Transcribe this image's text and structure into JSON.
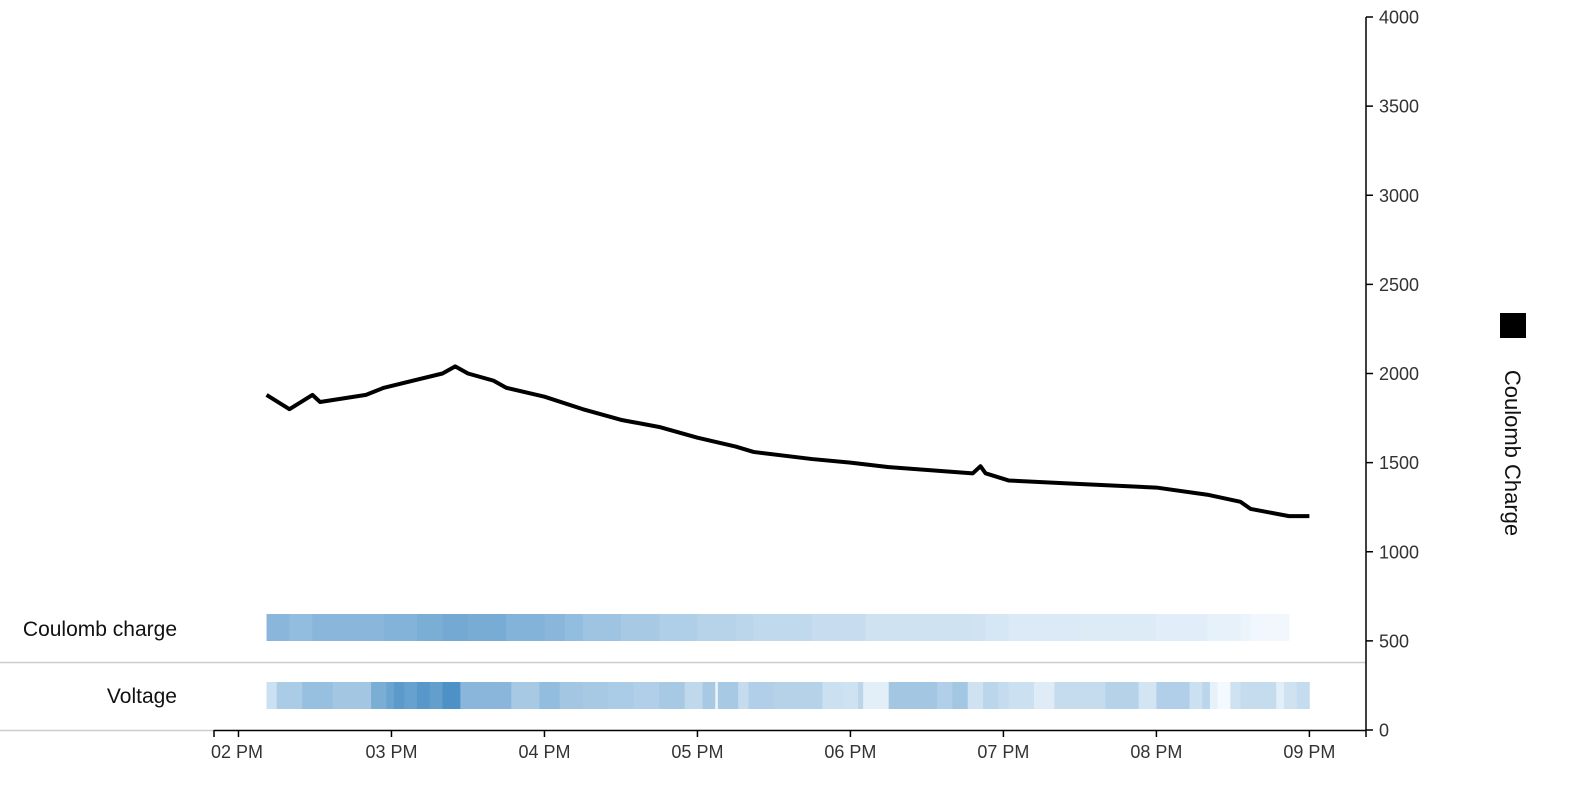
{
  "chart_data": {
    "type": "line",
    "title": "",
    "xlabel": "",
    "ylabel": "Coulomb Charge",
    "ylim": [
      0,
      4000
    ],
    "yticks": [
      "0",
      "500",
      "1000",
      "1500",
      "2000",
      "2500",
      "3000",
      "3500",
      "4000"
    ],
    "xticks": [
      "02 PM",
      "03 PM",
      "04 PM",
      "05 PM",
      "06 PM",
      "07 PM",
      "08 PM",
      "09 PM"
    ],
    "x_range_hours": [
      13.84,
      21.37
    ],
    "grid": false,
    "legend": {
      "position": "right",
      "entries": [
        "Coulomb Charge"
      ]
    },
    "colors": {
      "line": "#000000",
      "band_light": "#f7fbff",
      "band_dark": "#2f7ebc",
      "axis": "#000000",
      "divider": "#cccccc"
    },
    "series": [
      {
        "name": "Coulomb Charge",
        "points": [
          [
            "14:11",
            1880
          ],
          [
            "14:20",
            1800
          ],
          [
            "14:29",
            1880
          ],
          [
            "14:32",
            1840
          ],
          [
            "14:50",
            1880
          ],
          [
            "14:57",
            1920
          ],
          [
            "15:20",
            2000
          ],
          [
            "15:25",
            2040
          ],
          [
            "15:30",
            2000
          ],
          [
            "15:40",
            1960
          ],
          [
            "15:45",
            1920
          ],
          [
            "16:00",
            1870
          ],
          [
            "16:15",
            1800
          ],
          [
            "16:30",
            1740
          ],
          [
            "16:45",
            1700
          ],
          [
            "17:00",
            1640
          ],
          [
            "17:15",
            1590
          ],
          [
            "17:22",
            1560
          ],
          [
            "17:45",
            1520
          ],
          [
            "18:00",
            1500
          ],
          [
            "18:15",
            1475
          ],
          [
            "18:48",
            1440
          ],
          [
            "18:51",
            1480
          ],
          [
            "18:53",
            1440
          ],
          [
            "19:02",
            1400
          ],
          [
            "19:30",
            1380
          ],
          [
            "20:00",
            1360
          ],
          [
            "20:20",
            1320
          ],
          [
            "20:33",
            1280
          ],
          [
            "20:37",
            1240
          ],
          [
            "20:52",
            1200
          ],
          [
            "21:00",
            1200
          ]
        ]
      }
    ],
    "bands": [
      {
        "name": "Coulomb charge",
        "segments": [
          [
            "14:11",
            "14:20",
            0.55
          ],
          [
            "14:20",
            "14:29",
            0.5
          ],
          [
            "14:29",
            "14:50",
            0.55
          ],
          [
            "14:50",
            "14:57",
            0.55
          ],
          [
            "14:57",
            "15:10",
            0.58
          ],
          [
            "15:10",
            "15:20",
            0.62
          ],
          [
            "15:20",
            "15:30",
            0.66
          ],
          [
            "15:30",
            "15:45",
            0.63
          ],
          [
            "15:45",
            "16:00",
            0.58
          ],
          [
            "16:00",
            "16:08",
            0.55
          ],
          [
            "16:08",
            "16:15",
            0.5
          ],
          [
            "16:15",
            "16:30",
            0.44
          ],
          [
            "16:30",
            "16:45",
            0.4
          ],
          [
            "16:45",
            "17:00",
            0.36
          ],
          [
            "17:00",
            "17:15",
            0.32
          ],
          [
            "17:15",
            "17:22",
            0.3
          ],
          [
            "17:22",
            "17:45",
            0.27
          ],
          [
            "17:45",
            "18:06",
            0.24
          ],
          [
            "18:06",
            "18:48",
            0.2
          ],
          [
            "18:48",
            "18:53",
            0.19
          ],
          [
            "18:53",
            "19:02",
            0.17
          ],
          [
            "19:02",
            "19:30",
            0.14
          ],
          [
            "19:30",
            "20:00",
            0.13
          ],
          [
            "20:00",
            "20:20",
            0.11
          ],
          [
            "20:20",
            "20:33",
            0.08
          ],
          [
            "20:33",
            "20:37",
            0.06
          ],
          [
            "20:37",
            "20:52",
            0.03
          ]
        ]
      },
      {
        "name": "Voltage",
        "segments": [
          [
            "14:11",
            "14:15",
            0.22
          ],
          [
            "14:15",
            "14:25",
            0.38
          ],
          [
            "14:25",
            "14:37",
            0.48
          ],
          [
            "14:37",
            "14:52",
            0.42
          ],
          [
            "14:52",
            "14:58",
            0.62
          ],
          [
            "14:58",
            "15:01",
            0.7
          ],
          [
            "15:01",
            "15:05",
            0.78
          ],
          [
            "15:05",
            "15:10",
            0.72
          ],
          [
            "15:10",
            "15:15",
            0.8
          ],
          [
            "15:15",
            "15:20",
            0.74
          ],
          [
            "15:20",
            "15:27",
            0.85
          ],
          [
            "15:27",
            "15:47",
            0.55
          ],
          [
            "15:47",
            "15:58",
            0.4
          ],
          [
            "15:58",
            "16:06",
            0.5
          ],
          [
            "16:06",
            "16:15",
            0.42
          ],
          [
            "16:15",
            "16:25",
            0.4
          ],
          [
            "16:25",
            "16:35",
            0.38
          ],
          [
            "16:35",
            "16:45",
            0.35
          ],
          [
            "16:45",
            "16:55",
            0.4
          ],
          [
            "16:55",
            "17:02",
            0.28
          ],
          [
            "17:02",
            "17:07",
            0.4
          ],
          [
            "17:07",
            "17:08",
            0.05
          ],
          [
            "17:08",
            "17:16",
            0.4
          ],
          [
            "17:16",
            "17:20",
            0.25
          ],
          [
            "17:20",
            "17:30",
            0.35
          ],
          [
            "17:30",
            "17:49",
            0.33
          ],
          [
            "17:49",
            "17:57",
            0.22
          ],
          [
            "17:57",
            "18:03",
            0.2
          ],
          [
            "18:03",
            "18:05",
            0.3
          ],
          [
            "18:05",
            "18:15",
            0.1
          ],
          [
            "18:15",
            "18:34",
            0.42
          ],
          [
            "18:34",
            "18:40",
            0.35
          ],
          [
            "18:40",
            "18:46",
            0.42
          ],
          [
            "18:46",
            "18:52",
            0.2
          ],
          [
            "18:52",
            "18:58",
            0.3
          ],
          [
            "18:58",
            "19:02",
            0.25
          ],
          [
            "19:02",
            "19:12",
            0.22
          ],
          [
            "19:12",
            "19:20",
            0.12
          ],
          [
            "19:20",
            "19:40",
            0.25
          ],
          [
            "19:40",
            "19:53",
            0.33
          ],
          [
            "19:53",
            "20:00",
            0.18
          ],
          [
            "20:00",
            "20:13",
            0.35
          ],
          [
            "20:13",
            "20:18",
            0.22
          ],
          [
            "20:18",
            "20:21",
            0.3
          ],
          [
            "20:21",
            "20:24",
            0.08
          ],
          [
            "20:24",
            "20:29",
            0.02
          ],
          [
            "20:29",
            "20:33",
            0.2
          ],
          [
            "20:33",
            "20:47",
            0.25
          ],
          [
            "20:47",
            "20:50",
            0.1
          ],
          [
            "20:50",
            "20:55",
            0.2
          ],
          [
            "20:55",
            "21:00",
            0.25
          ]
        ]
      }
    ]
  }
}
